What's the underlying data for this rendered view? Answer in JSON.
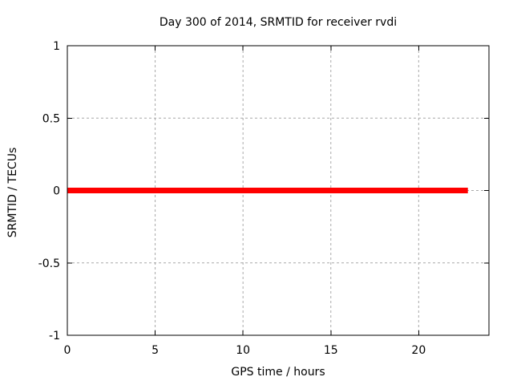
{
  "chart_data": {
    "type": "line",
    "title": "Day 300 of 2014, SRMTID for receiver rvdi",
    "xlabel": "GPS time / hours",
    "ylabel": "SRMTID / TECUs",
    "xlim": [
      0,
      24
    ],
    "ylim": [
      -1,
      1
    ],
    "xtick_values": [
      0,
      5,
      10,
      15,
      20
    ],
    "xtick_labels": [
      "0",
      "5",
      "10",
      "15",
      "20"
    ],
    "ytick_values": [
      -1,
      -0.5,
      0,
      0.5,
      1
    ],
    "ytick_labels": [
      "-1",
      "-0.5",
      "0",
      "0.5",
      "1"
    ],
    "grid": true,
    "legend": "none",
    "colors": {
      "line": "#ff0000",
      "grid": "#a8a8a8",
      "border": "#000000",
      "text": "#000000",
      "background": "#ffffff"
    },
    "series": [
      {
        "name": "SRMTID",
        "color": "#ff0000",
        "linewidth": 7,
        "x": [
          0,
          22.8
        ],
        "y": [
          0,
          0
        ],
        "description": "constant zero value from hour 0 to ~22.8"
      }
    ]
  }
}
